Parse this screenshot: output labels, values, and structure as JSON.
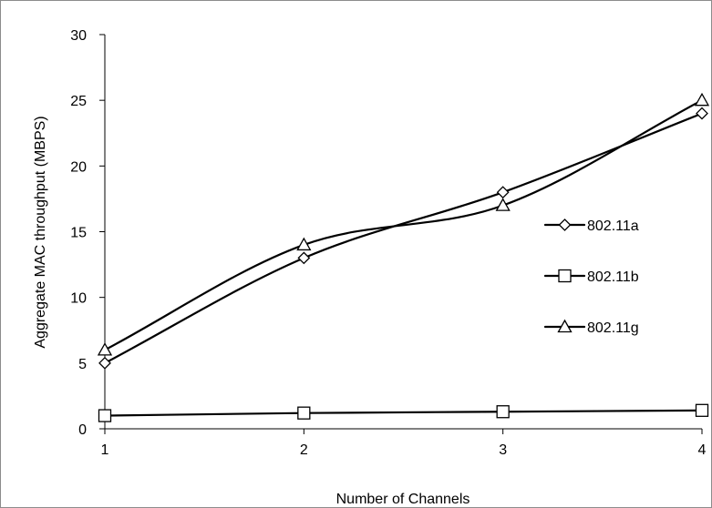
{
  "chart_data": {
    "type": "line",
    "title": "",
    "xlabel": "Number of Channels",
    "ylabel": "Aggregate MAC throughput (MBPS)",
    "categories": [
      "1",
      "2",
      "3",
      "4"
    ],
    "x": [
      1,
      2,
      3,
      4
    ],
    "ylim": [
      0,
      30
    ],
    "yticks": [
      "0",
      "5",
      "10",
      "15",
      "20",
      "25",
      "30"
    ],
    "grid": false,
    "legend_position": "right",
    "series": [
      {
        "name": "802.11a",
        "values": [
          5,
          13,
          18,
          24
        ],
        "marker": "diamond",
        "color": "#000000"
      },
      {
        "name": "802.11b",
        "values": [
          1,
          1.2,
          1.3,
          1.4
        ],
        "marker": "square",
        "color": "#000000"
      },
      {
        "name": "802.11g",
        "values": [
          6,
          14,
          17,
          25
        ],
        "marker": "triangle",
        "color": "#000000"
      }
    ]
  }
}
